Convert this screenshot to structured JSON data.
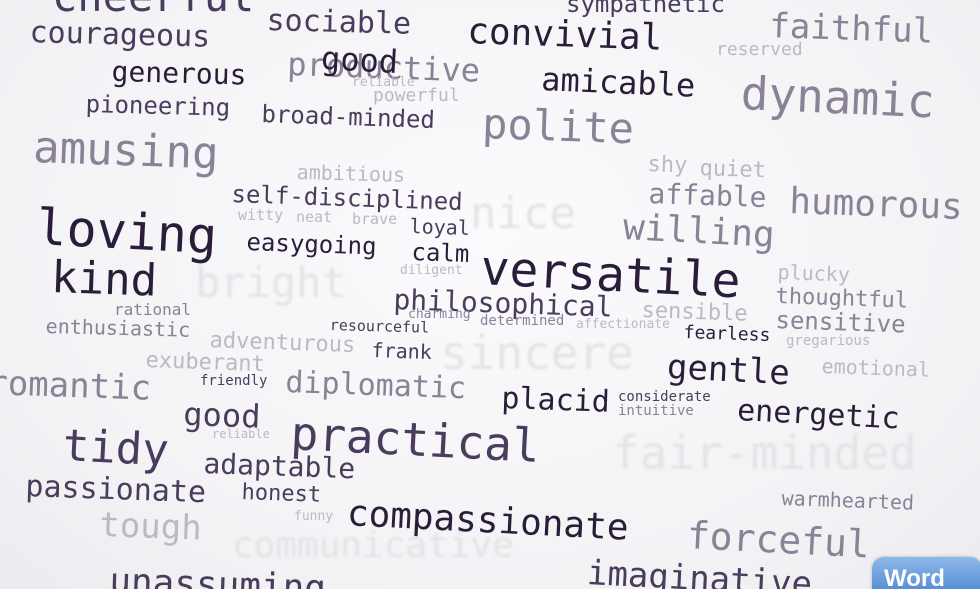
{
  "words": {
    "w_cheerful": "cheerful",
    "w_sympathetic": "sympathetic",
    "w_sociable": "sociable",
    "w_convivial": "convivial",
    "w_faithful": "faithful",
    "w_courageous": "courageous",
    "w_reserved": "reserved",
    "w_productive": "productive",
    "w_good_top": "good",
    "w_amicable": "amicable",
    "w_dynamic": "dynamic",
    "w_generous": "generous",
    "w_reliable_top": "reliable",
    "w_powerful": "powerful",
    "w_pioneering": "pioneering",
    "w_broad_minded": "broad-minded",
    "w_polite": "polite",
    "w_amusing": "amusing",
    "w_shy": "shy",
    "w_quiet": "quiet",
    "w_ambitious": "ambitious",
    "w_affable": "affable",
    "w_humorous": "humorous",
    "w_self_disciplined": "self-disciplined",
    "w_nice": "nice",
    "w_loving": "loving",
    "w_witty": "witty",
    "w_neat": "neat",
    "w_brave": "brave",
    "w_loyal": "loyal",
    "w_willing": "willing",
    "w_easygoing": "easygoing",
    "w_calm": "calm",
    "w_kind": "kind",
    "w_diligent": "diligent",
    "w_versatile": "versatile",
    "w_plucky": "plucky",
    "w_bright": "bright",
    "w_philosophical": "philosophical",
    "w_thoughtful": "thoughtful",
    "w_rational": "rational",
    "w_sensible": "sensible",
    "w_enthusiastic": "enthusiastic",
    "w_charming": "charming",
    "w_determined": "determined",
    "w_affectionate": "affectionate",
    "w_sensitive": "sensitive",
    "w_resourceful": "resourceful",
    "w_fearless": "fearless",
    "w_adventurous": "adventurous",
    "w_frank": "frank",
    "w_gregarious": "gregarious",
    "w_sincere": "sincere",
    "w_exuberant": "exuberant",
    "w_gentle": "gentle",
    "w_emotional": "emotional",
    "w_romantic": "romantic",
    "w_friendly": "friendly",
    "w_diplomatic": "diplomatic",
    "w_placid": "placid",
    "w_considerate": "considerate",
    "w_intuitive": "intuitive",
    "w_good": "good",
    "w_energetic": "energetic",
    "w_reliable": "reliable",
    "w_practical": "practical",
    "w_tidy": "tidy",
    "w_fair_minded": "fair-minded",
    "w_adaptable": "adaptable",
    "w_passionate": "passionate",
    "w_honest": "honest",
    "w_warmhearted": "warmhearted",
    "w_tough": "tough",
    "w_funny": "funny",
    "w_compassionate": "compassionate",
    "w_forceful": "forceful",
    "w_communicative": "communicative",
    "w_unassuming": "unassuming",
    "w_imaginative": "imaginative"
  },
  "badge": {
    "label": "Word"
  },
  "colors": {
    "dark": "#2a1d3a",
    "medium": "#4a3c5c",
    "light": "#8a8296",
    "faint": "#bdb8c4",
    "badge": "#4a86d2"
  }
}
